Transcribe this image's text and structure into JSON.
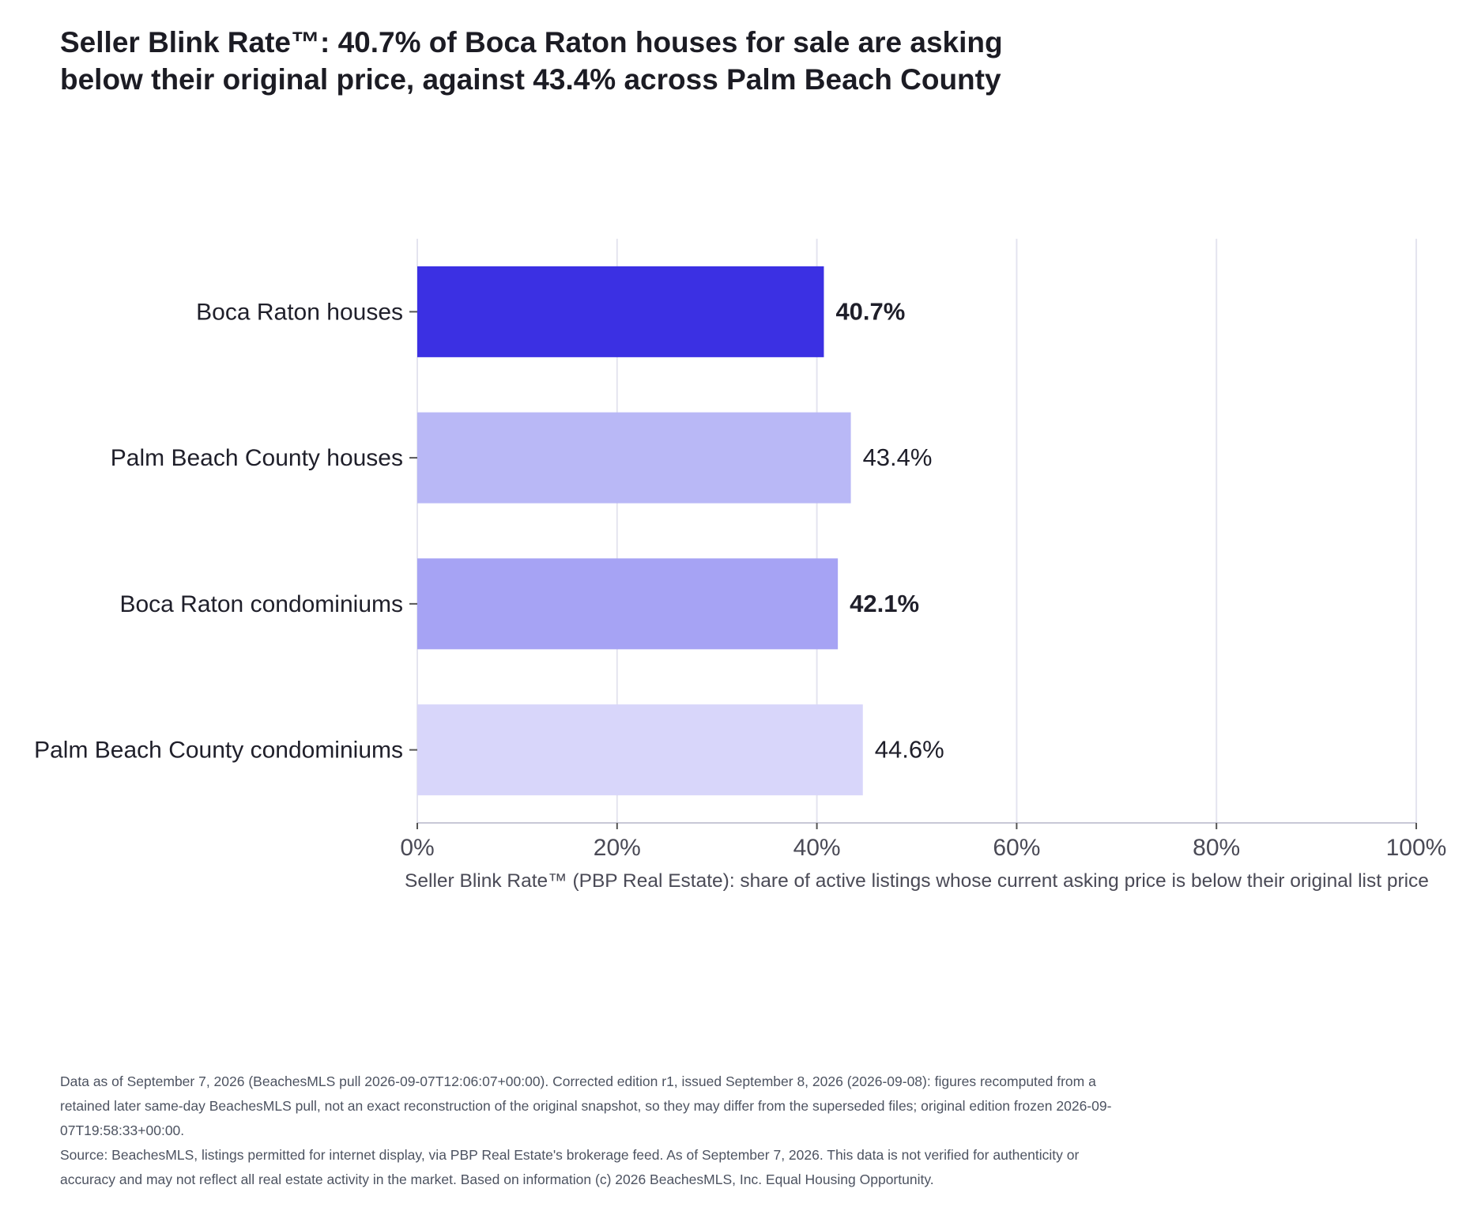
{
  "title_lines": [
    "Seller Blink Rate™: 40.7% of Boca Raton houses for sale are asking",
    "below their original price, against 43.4% across Palm Beach County"
  ],
  "colors": {
    "grid": "#e4e4ef",
    "axis": "#c8c8d6",
    "tick_text": "#4a4a56",
    "category_text": "#1f1f2a",
    "value_text": "#1f1f2a"
  },
  "chart_data": {
    "type": "bar",
    "orientation": "horizontal",
    "categories": [
      "Boca Raton houses",
      "Palm Beach County houses",
      "Boca Raton condominiums",
      "Palm Beach County condominiums"
    ],
    "values": [
      40.7,
      43.4,
      42.1,
      44.6
    ],
    "value_labels": [
      "40.7%",
      "43.4%",
      "42.1%",
      "44.6%"
    ],
    "value_label_bold": [
      true,
      false,
      true,
      false
    ],
    "bar_colors": [
      "#3b30e3",
      "#b9b8f6",
      "#a6a3f4",
      "#d8d6fa"
    ],
    "xlabel": "Seller Blink Rate™ (PBP Real Estate): share of active listings whose current asking price is below their original list price",
    "xlim": [
      0,
      100
    ],
    "xticks": [
      0,
      20,
      40,
      60,
      80,
      100
    ],
    "xtick_labels": [
      "0%",
      "20%",
      "40%",
      "60%",
      "80%",
      "100%"
    ],
    "grid": true
  },
  "footnotes": [
    "Data as of September 7, 2026 (BeachesMLS pull 2026-09-07T12:06:07+00:00). Corrected edition r1, issued September 8, 2026 (2026-09-08): figures recomputed from a retained later same-day BeachesMLS pull, not an exact reconstruction of the original snapshot, so they may differ from the superseded files; original edition frozen 2026-09-07T19:58:33+00:00.",
    "Source: BeachesMLS, listings permitted for internet display, via PBP Real Estate's brokerage feed. As of September 7, 2026. This data is not verified for authenticity or accuracy and may not reflect all real estate activity in the market. Based on information (c) 2026 BeachesMLS, Inc. Equal Housing Opportunity."
  ]
}
